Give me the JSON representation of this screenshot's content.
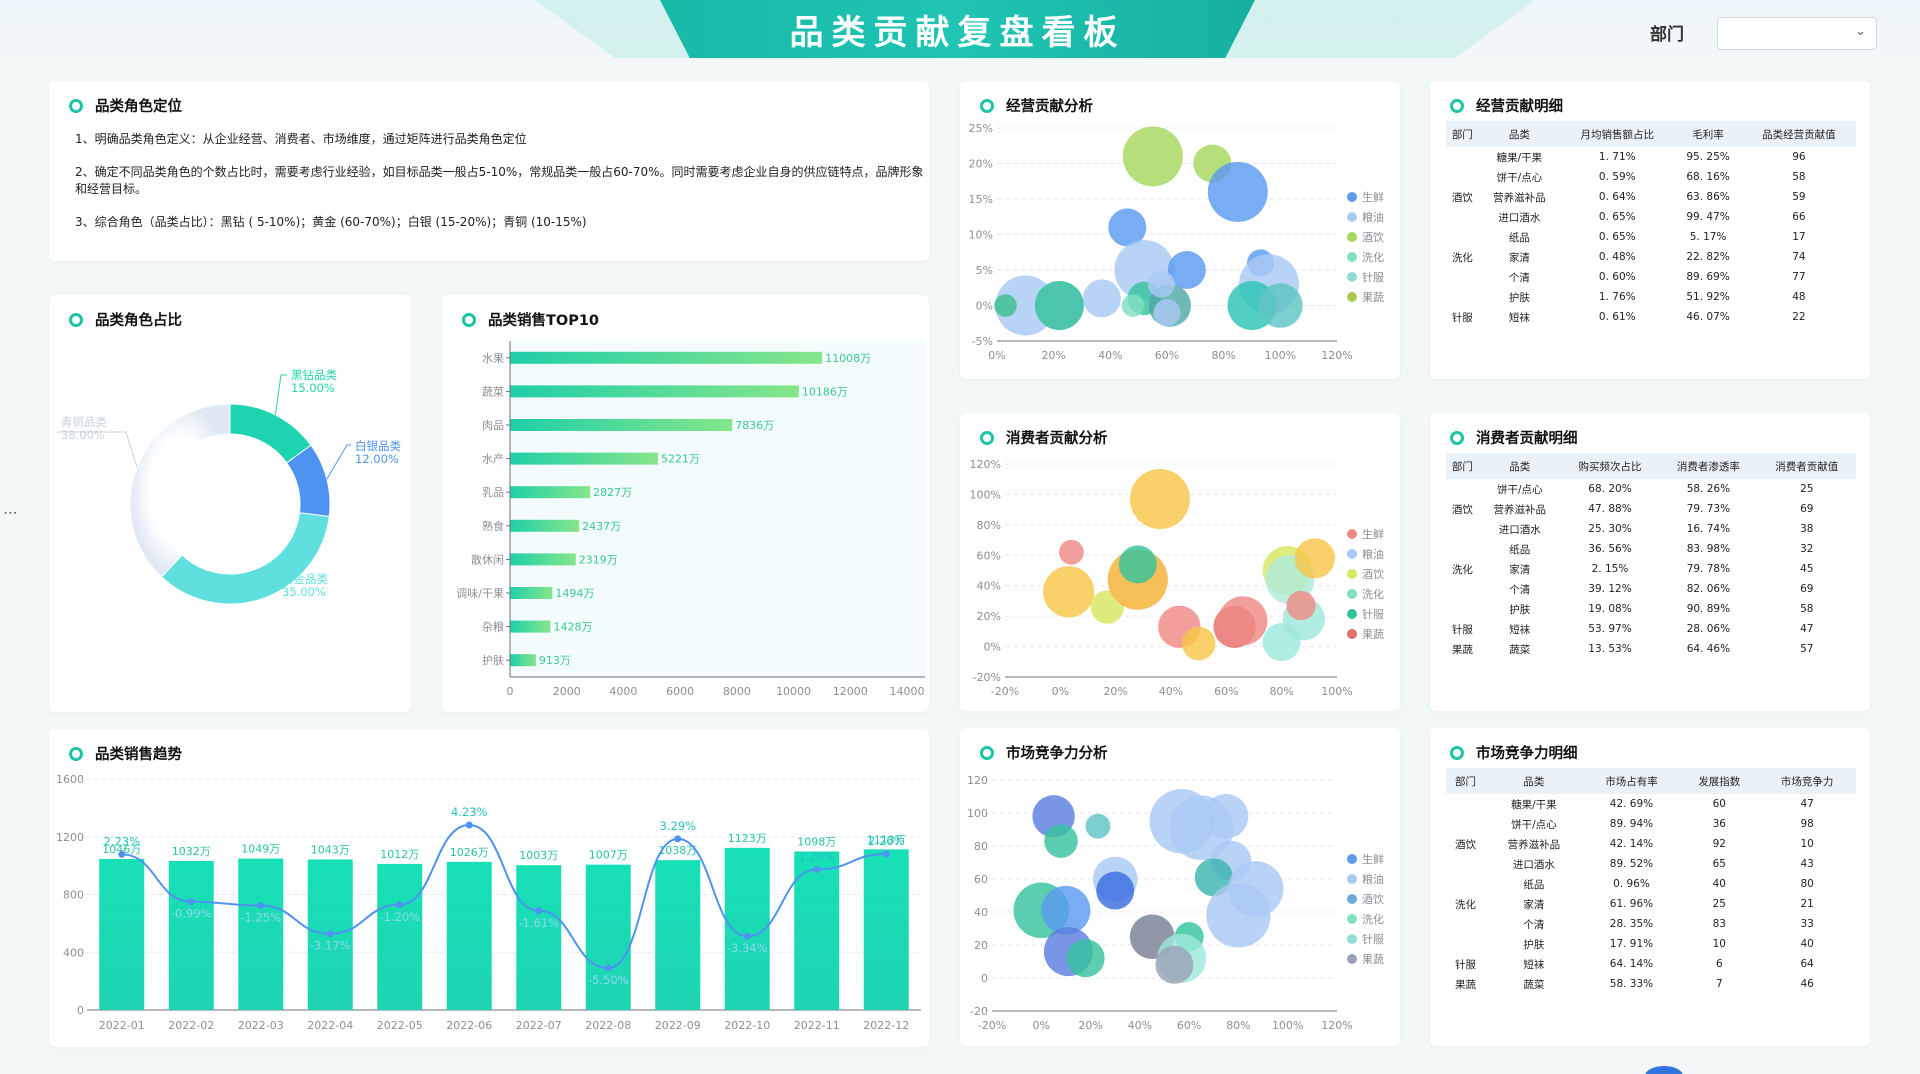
{
  "header": {
    "title": "品类贡献复盘看板",
    "dept_label": "部门",
    "dept_value": ""
  },
  "role_position": {
    "title": "品类角色定位",
    "lines": [
      "1、明确品类角色定义：从企业经营、消费者、市场维度，通过矩阵进行品类角色定位",
      "2、确定不同品类角色的个数占比时，需要考虑行业经验，如目标品类一般占5-10%，常规品类一般占60-70%。同时需要考虑企业自身的供应链特点，品牌形象和经营目标。",
      "3、综合角色（品类占比）：黑钻 ( 5-10%)；黄金 (60-70%)；白银 (15-20%)；青铜 (10-15%)"
    ]
  },
  "role_ratio": {
    "title": "品类角色占比",
    "chart_data": {
      "type": "pie",
      "slices": [
        {
          "name": "黑钻品类",
          "value": 15.0,
          "label": "15.00%",
          "color": "#1ed4b0"
        },
        {
          "name": "白银品类",
          "value": 12.0,
          "label": "12.00%",
          "color": "#4f93f0"
        },
        {
          "name": "黄金品类",
          "value": 35.0,
          "label": "35.00%",
          "color": "#5fe0df"
        },
        {
          "name": "青铜品类",
          "value": 38.0,
          "label": "38.00%",
          "color": "#e3ecf6"
        }
      ]
    }
  },
  "top10": {
    "title": "品类销售TOP10",
    "chart_data": {
      "type": "bar",
      "orientation": "horizontal",
      "categories": [
        "水果",
        "蔬菜",
        "肉品",
        "水产",
        "乳品",
        "熟食",
        "散休闲",
        "调味/干果",
        "杂粮",
        "护肤"
      ],
      "values": [
        11008,
        10186,
        7836,
        5221,
        2827,
        2437,
        2319,
        1494,
        1428,
        913
      ],
      "labels": [
        "11008万",
        "10186万",
        "7836万",
        "5221万",
        "2827万",
        "2437万",
        "2319万",
        "1494万",
        "1428万",
        "913万"
      ],
      "xlim": [
        0,
        14000
      ],
      "xticks": [
        "0",
        "2000",
        "4000",
        "6000",
        "8000",
        "10000",
        "12000",
        "14000"
      ]
    }
  },
  "trend": {
    "title": "品类销售趋势",
    "chart_data": {
      "type": "bar",
      "categories": [
        "2022-01",
        "2022-02",
        "2022-03",
        "2022-04",
        "2022-05",
        "2022-06",
        "2022-07",
        "2022-08",
        "2022-09",
        "2022-10",
        "2022-11",
        "2022-12"
      ],
      "values": [
        1046,
        1032,
        1049,
        1043,
        1012,
        1026,
        1003,
        1007,
        1038,
        1123,
        1098,
        1113
      ],
      "bar_labels": [
        "1046万",
        "1032万",
        "1049万",
        "1043万",
        "1012万",
        "1026万",
        "1003万",
        "1007万",
        "1038万",
        "1123万",
        "1098万",
        "1113万"
      ],
      "ylim": [
        0,
        1600
      ],
      "yticks": [
        "0",
        "400",
        "800",
        "1200",
        "1600"
      ],
      "series": [
        {
          "values": [
            2.23,
            -0.99,
            -1.25,
            -3.17,
            -1.2,
            4.23,
            -1.61,
            -5.5,
            3.29,
            -3.34,
            1.2,
            2.26
          ],
          "labels": [
            "2.23%",
            "-0.99%",
            "-1.25%",
            "-3.17%",
            "-1.20%",
            "4.23%",
            "-1.61%",
            "-5.50%",
            "3.29%",
            "-3.34%",
            "1.20%",
            "2.26%"
          ]
        }
      ]
    }
  },
  "op_analysis": {
    "title": "经营贡献分析",
    "legend": [
      "生鲜",
      "粮油",
      "酒饮",
      "洗化",
      "针服",
      "果蔬"
    ],
    "legend_colors": [
      "#5b9bf0",
      "#aac9f4",
      "#a6d85e",
      "#7fe0c5",
      "#8fdcda",
      "#a8c84f"
    ],
    "xticks": [
      "0%",
      "20%",
      "40%",
      "60%",
      "80%",
      "100%",
      "120%"
    ],
    "yticks": [
      "25%",
      "20%",
      "15%",
      "10%",
      "5%",
      "0%",
      "-5%"
    ],
    "chart_data": {
      "type": "scatter",
      "xlim": [
        0,
        120
      ],
      "ylim": [
        -5,
        25
      ],
      "points": [
        {
          "x": 55,
          "y": 21,
          "r": 2,
          "c": "#a6d85e"
        },
        {
          "x": 76,
          "y": 20,
          "r": 1,
          "c": "#a6d85e"
        },
        {
          "x": 85,
          "y": 16,
          "r": 2,
          "c": "#5b9bf0"
        },
        {
          "x": 46,
          "y": 11,
          "r": 1,
          "c": "#5b9bf0"
        },
        {
          "x": 52,
          "y": 5,
          "r": 2,
          "c": "#aac9f4"
        },
        {
          "x": 67,
          "y": 5,
          "r": 1,
          "c": "#5b9bf0"
        },
        {
          "x": 93,
          "y": 6,
          "r": 0.5,
          "c": "#5b9bf0"
        },
        {
          "x": 96,
          "y": 3,
          "r": 2,
          "c": "#aac9f4"
        },
        {
          "x": 10,
          "y": 0,
          "r": 2,
          "c": "#aac9f4"
        },
        {
          "x": 22,
          "y": 0,
          "r": 1.5,
          "c": "#aac9f4"
        },
        {
          "x": 37,
          "y": 1,
          "r": 1,
          "c": "#aac9f4"
        },
        {
          "x": 3,
          "y": 0,
          "r": 0.3,
          "c": "#3cbf8e"
        },
        {
          "x": 22,
          "y": 0,
          "r": 1.5,
          "c": "#36c39c"
        },
        {
          "x": 52,
          "y": 1,
          "r": 0.8,
          "c": "#36c39c"
        },
        {
          "x": 48,
          "y": 0,
          "r": 0.3,
          "c": "#7fe0c5"
        },
        {
          "x": 61,
          "y": 0,
          "r": 1.2,
          "c": "#4fa8a8"
        },
        {
          "x": 90,
          "y": 0,
          "r": 1.5,
          "c": "#2cc4b4"
        },
        {
          "x": 100,
          "y": 0,
          "r": 1.3,
          "c": "#5fc4c4"
        },
        {
          "x": 58,
          "y": 3,
          "r": 0.5,
          "c": "#aac9f4"
        },
        {
          "x": 60,
          "y": -1,
          "r": 0.5,
          "c": "#aac9f4"
        }
      ]
    }
  },
  "con_analysis": {
    "title": "消费者贡献分析",
    "legend": [
      "生鲜",
      "粮油",
      "酒饮",
      "洗化",
      "针服",
      "果蔬"
    ],
    "legend_colors": [
      "#ef8a86",
      "#aac9f4",
      "#d8e860",
      "#7fe0c5",
      "#36c39c",
      "#e56d6a"
    ],
    "xticks": [
      "-20%",
      "0%",
      "20%",
      "40%",
      "60%",
      "80%",
      "100%"
    ],
    "yticks": [
      "120%",
      "100%",
      "80%",
      "60%",
      "40%",
      "20%",
      "0%",
      "-20%"
    ],
    "chart_data": {
      "type": "scatter",
      "xlim": [
        -20,
        100
      ],
      "ylim": [
        -20,
        120
      ],
      "points": [
        {
          "x": 36,
          "y": 97,
          "r": 2,
          "c": "#f8c649"
        },
        {
          "x": 4,
          "y": 62,
          "r": 0.4,
          "c": "#ef8a86"
        },
        {
          "x": 3,
          "y": 36,
          "r": 1.6,
          "c": "#f8c649"
        },
        {
          "x": 17,
          "y": 26,
          "r": 0.8,
          "c": "#d8e860"
        },
        {
          "x": 28,
          "y": 44,
          "r": 2,
          "c": "#ef8a86"
        },
        {
          "x": 28,
          "y": 44,
          "r": 2,
          "c": "#f8c649"
        },
        {
          "x": 28,
          "y": 54,
          "r": 1,
          "c": "#36c39c"
        },
        {
          "x": 43,
          "y": 13,
          "r": 1.2,
          "c": "#ef8a86"
        },
        {
          "x": 50,
          "y": 2,
          "r": 0.8,
          "c": "#f8c649"
        },
        {
          "x": 63,
          "y": 13,
          "r": 1.2,
          "c": "#e56d6a"
        },
        {
          "x": 66,
          "y": 17,
          "r": 1.5,
          "c": "#ef8a86"
        },
        {
          "x": 82,
          "y": 50,
          "r": 1.5,
          "c": "#d8e860"
        },
        {
          "x": 83,
          "y": 44,
          "r": 1.5,
          "c": "#aeeadc"
        },
        {
          "x": 88,
          "y": 18,
          "r": 1.2,
          "c": "#9ee8dc"
        },
        {
          "x": 92,
          "y": 58,
          "r": 1.1,
          "c": "#f8c649"
        },
        {
          "x": 87,
          "y": 27,
          "r": 0.6,
          "c": "#ef8a86"
        },
        {
          "x": 80,
          "y": 3,
          "r": 1,
          "c": "#9ee8dc"
        }
      ]
    }
  },
  "mkt_analysis": {
    "title": "市场竞争力分析",
    "legend": [
      "生鲜",
      "粮油",
      "酒饮",
      "洗化",
      "针服",
      "果蔬"
    ],
    "legend_colors": [
      "#5b9bf0",
      "#aac9f4",
      "#6fa8dc",
      "#7fe0c5",
      "#8fdcda",
      "#9aa2b5"
    ],
    "xticks": [
      "-20%",
      "0%",
      "20%",
      "40%",
      "60%",
      "80%",
      "100%",
      "120%"
    ],
    "yticks": [
      "120",
      "100",
      "80",
      "60",
      "40",
      "20",
      "0",
      "-20"
    ],
    "chart_data": {
      "type": "scatter",
      "xlim": [
        -20,
        120
      ],
      "ylim": [
        -20,
        120
      ],
      "points": [
        {
          "x": 5,
          "y": 98,
          "r": 1.2,
          "c": "#5b7fe0"
        },
        {
          "x": 8,
          "y": 83,
          "r": 0.8,
          "c": "#36c39c"
        },
        {
          "x": 23,
          "y": 92,
          "r": 0.4,
          "c": "#5fc4c4"
        },
        {
          "x": 30,
          "y": 60,
          "r": 1.3,
          "c": "#aac9f4"
        },
        {
          "x": 30,
          "y": 53,
          "r": 1,
          "c": "#3b6ee0"
        },
        {
          "x": 0,
          "y": 41,
          "r": 1.8,
          "c": "#36c39c"
        },
        {
          "x": 10,
          "y": 41,
          "r": 1.5,
          "c": "#5b9bf0"
        },
        {
          "x": 11,
          "y": 16,
          "r": 1.5,
          "c": "#5b7fe0"
        },
        {
          "x": 18,
          "y": 12,
          "r": 1,
          "c": "#36c39c"
        },
        {
          "x": 57,
          "y": 95,
          "r": 2.2,
          "c": "#aac9f4"
        },
        {
          "x": 65,
          "y": 91,
          "r": 2.2,
          "c": "#aac9f4"
        },
        {
          "x": 75,
          "y": 98,
          "r": 1.3,
          "c": "#aac9f4"
        },
        {
          "x": 45,
          "y": 25,
          "r": 1.3,
          "c": "#7a8095"
        },
        {
          "x": 77,
          "y": 71,
          "r": 1.1,
          "c": "#aac9f4"
        },
        {
          "x": 70,
          "y": 61,
          "r": 1,
          "c": "#3cb4b0"
        },
        {
          "x": 87,
          "y": 54,
          "r": 1.8,
          "c": "#aac9f4"
        },
        {
          "x": 80,
          "y": 38,
          "r": 2.2,
          "c": "#aac9f4"
        },
        {
          "x": 60,
          "y": 25,
          "r": 0.6,
          "c": "#36c39c"
        },
        {
          "x": 57,
          "y": 12,
          "r": 1.5,
          "c": "#9ee8dc"
        },
        {
          "x": 54,
          "y": 8,
          "r": 1,
          "c": "#9aa2b5"
        }
      ]
    }
  },
  "op_detail": {
    "title": "经营贡献明细",
    "headers": [
      "部门",
      "品类",
      "月均销售额占比",
      "毛利率",
      "品类经营贡献值"
    ],
    "rows": [
      [
        "",
        "糖果/干果",
        "1. 71%",
        "95. 25%",
        "96"
      ],
      [
        "",
        "饼干/点心",
        "0. 59%",
        "68. 16%",
        "58"
      ],
      [
        "酒饮",
        "营养滋补品",
        "0. 64%",
        "63. 86%",
        "59"
      ],
      [
        "",
        "进口酒水",
        "0. 65%",
        "99. 47%",
        "66"
      ],
      [
        "",
        "纸品",
        "0. 65%",
        "5. 17%",
        "17"
      ],
      [
        "洗化",
        "家清",
        "0. 48%",
        "22. 82%",
        "74"
      ],
      [
        "",
        "个清",
        "0. 60%",
        "89. 69%",
        "77"
      ],
      [
        "",
        "护肤",
        "1. 76%",
        "51. 92%",
        "48"
      ],
      [
        "针服",
        "短袜",
        "0. 61%",
        "46. 07%",
        "22"
      ]
    ]
  },
  "con_detail": {
    "title": "消费者贡献明细",
    "headers": [
      "部门",
      "品类",
      "购买频次占比",
      "消费者渗透率",
      "消费者贡献值"
    ],
    "rows": [
      [
        "",
        "饼干/点心",
        "68. 20%",
        "58. 26%",
        "25"
      ],
      [
        "酒饮",
        "营养滋补品",
        "47. 88%",
        "79. 73%",
        "69"
      ],
      [
        "",
        "进口酒水",
        "25. 30%",
        "16. 74%",
        "38"
      ],
      [
        "",
        "纸品",
        "36. 56%",
        "83. 98%",
        "32"
      ],
      [
        "洗化",
        "家清",
        "2. 15%",
        "79. 78%",
        "45"
      ],
      [
        "",
        "个清",
        "39. 12%",
        "82. 06%",
        "69"
      ],
      [
        "",
        "护肤",
        "19. 08%",
        "90. 89%",
        "58"
      ],
      [
        "针服",
        "短袜",
        "53. 97%",
        "28. 06%",
        "47"
      ],
      [
        "果蔬",
        "蔬菜",
        "13. 53%",
        "64. 46%",
        "57"
      ]
    ]
  },
  "mkt_detail": {
    "title": "市场竞争力明细",
    "headers": [
      "部门",
      "品类",
      "市场占有率",
      "发展指数",
      "市场竞争力"
    ],
    "rows": [
      [
        "",
        "糖果/干果",
        "42. 69%",
        "60",
        "47"
      ],
      [
        "",
        "饼干/点心",
        "89. 94%",
        "36",
        "98"
      ],
      [
        "酒饮",
        "营养滋补品",
        "42. 14%",
        "92",
        "10"
      ],
      [
        "",
        "进口酒水",
        "89. 52%",
        "65",
        "43"
      ],
      [
        "",
        "纸品",
        "0. 96%",
        "40",
        "80"
      ],
      [
        "洗化",
        "家清",
        "61. 96%",
        "25",
        "21"
      ],
      [
        "",
        "个清",
        "28. 35%",
        "83",
        "33"
      ],
      [
        "",
        "护肤",
        "17. 91%",
        "10",
        "40"
      ],
      [
        "针服",
        "短袜",
        "64. 14%",
        "6",
        "64"
      ],
      [
        "果蔬",
        "蔬菜",
        "58. 33%",
        "7",
        "46"
      ]
    ]
  }
}
